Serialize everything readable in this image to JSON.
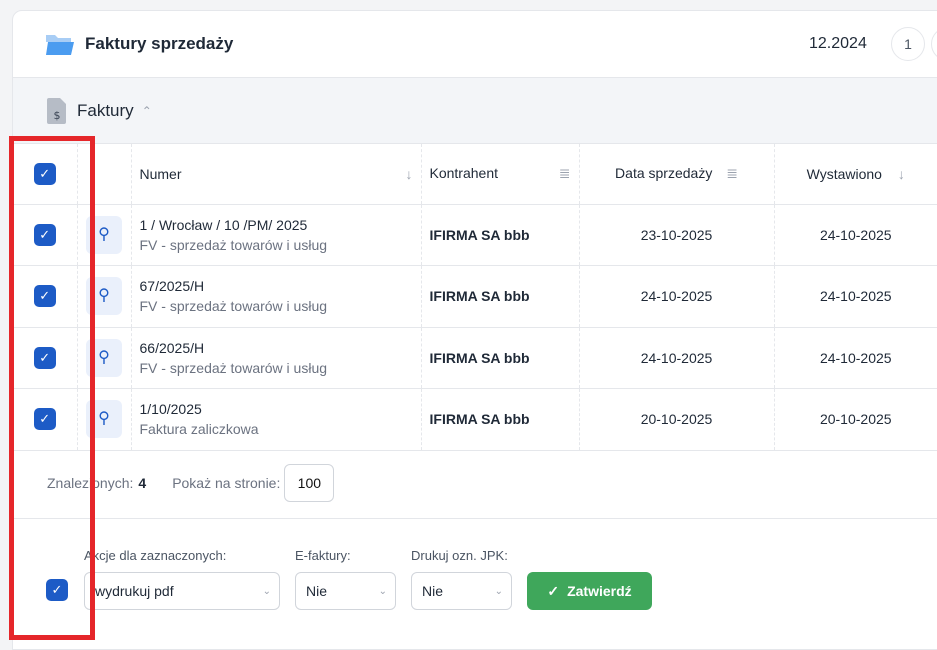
{
  "header": {
    "title": "Faktury sprzedaży",
    "period": "12.2024",
    "page": "1"
  },
  "section": {
    "title": "Faktury"
  },
  "table": {
    "columns": [
      "Numer",
      "Kontrahent",
      "Data sprzedaży",
      "Wystawiono"
    ],
    "rows": [
      {
        "numer": "1 / Wrocław / 10 /PM/ 2025",
        "typ": "FV - sprzedaż towarów i usług",
        "kontrahent": "IFIRMA SA bbb",
        "data_sprzedazy": "23-10-2025",
        "wystawiono": "24-10-2025",
        "checked": true
      },
      {
        "numer": "67/2025/H",
        "typ": "FV - sprzedaż towarów i usług",
        "kontrahent": "IFIRMA SA bbb",
        "data_sprzedazy": "24-10-2025",
        "wystawiono": "24-10-2025",
        "checked": true
      },
      {
        "numer": "66/2025/H",
        "typ": "FV - sprzedaż towarów i usług",
        "kontrahent": "IFIRMA SA bbb",
        "data_sprzedazy": "24-10-2025",
        "wystawiono": "24-10-2025",
        "checked": true
      },
      {
        "numer": "1/10/2025",
        "typ": "Faktura zaliczkowa",
        "kontrahent": "IFIRMA SA bbb",
        "data_sprzedazy": "20-10-2025",
        "wystawiono": "20-10-2025",
        "checked": true
      }
    ]
  },
  "footer": {
    "found_label": "Znalezionych:",
    "found_count": "4",
    "per_page_label": "Pokaż na stronie:",
    "per_page": "100"
  },
  "actions": {
    "actions_label": "Akcje dla zaznaczonych:",
    "actions_value": "wydrukuj pdf",
    "efaktury_label": "E-faktury:",
    "efaktury_value": "Nie",
    "jpk_label": "Drukuj ozn. JPK:",
    "jpk_value": "Nie",
    "submit": "Zatwierdź"
  },
  "colors": {
    "accent": "#1d5bc6",
    "success": "#3fa75b",
    "annotation": "#e5262a"
  }
}
